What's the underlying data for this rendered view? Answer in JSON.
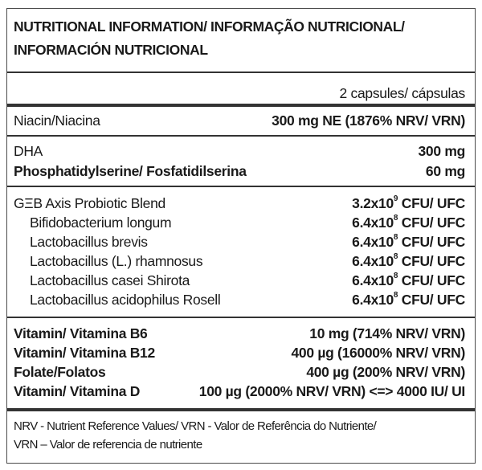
{
  "title_line1": "NUTRITIONAL INFORMATION/ INFORMAÇÃO NUTRICIONAL/",
  "title_line2": "INFORMACIÓN NUTRICIONAL",
  "serving_header": "2 capsules/ cápsulas",
  "niacin": {
    "name": "Niacin/Niacina",
    "value": "300 mg NE (1876% NRV/ VRN)"
  },
  "dha": {
    "name": "DHA",
    "value": "300 mg"
  },
  "ps": {
    "name": "Phosphatidylserine/ Fosfatidilserina",
    "value": "60 mg"
  },
  "blend": {
    "name": "GΞB Axis Probiotic Blend",
    "value_base": "3.2x10",
    "value_exp": "9",
    "value_unit": " CFU/ UFC"
  },
  "strains": [
    {
      "name": "Bifidobacterium longum",
      "value_base": "6.4x10",
      "value_exp": "8",
      "value_unit": " CFU/ UFC"
    },
    {
      "name": "Lactobacillus brevis",
      "value_base": "6.4x10",
      "value_exp": "8",
      "value_unit": " CFU/ UFC"
    },
    {
      "name": "Lactobacillus (L.) rhamnosus",
      "value_base": "6.4x10",
      "value_exp": "8",
      "value_unit": " CFU/ UFC"
    },
    {
      "name": "Lactobacillus casei Shirota",
      "value_base": "6.4x10",
      "value_exp": "8",
      "value_unit": " CFU/ UFC"
    },
    {
      "name": "Lactobacillus acidophilus Rosell",
      "value_base": "6.4x10",
      "value_exp": "8",
      "value_unit": " CFU/ UFC"
    }
  ],
  "vitamins": [
    {
      "name": "Vitamin/ Vitamina B6",
      "value": "10 mg (714% NRV/ VRN)"
    },
    {
      "name": "Vitamin/ Vitamina B12",
      "value": "400 µg (16000% NRV/ VRN)"
    },
    {
      "name": "Folate/Folatos",
      "value": "400 µg (200% NRV/ VRN)"
    },
    {
      "name": "Vitamin/ Vitamina D",
      "value": "100 µg (2000% NRV/ VRN) <=> 4000 IU/ UI"
    }
  ],
  "footnote_line1": "NRV - Nutrient Reference Values/ VRN - Valor de Referência do Nutriente/",
  "footnote_line2": "VRN – Valor de referencia de nutriente"
}
